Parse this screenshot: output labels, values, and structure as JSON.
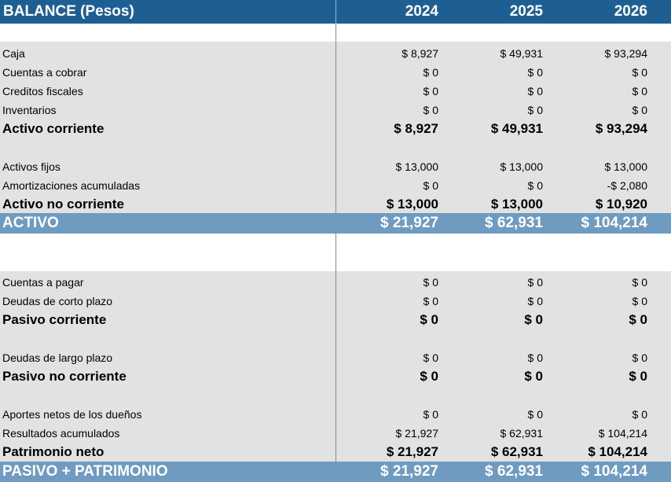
{
  "header": {
    "title": "BALANCE (Pesos)",
    "years": [
      "2024",
      "2025",
      "2026"
    ]
  },
  "rows": {
    "caja": {
      "label": "Caja",
      "values": [
        "$ 8,927",
        "$ 49,931",
        "$ 93,294"
      ]
    },
    "cuentas_cobrar": {
      "label": "Cuentas a cobrar",
      "values": [
        "$ 0",
        "$ 0",
        "$ 0"
      ]
    },
    "creditos": {
      "label": "Creditos fiscales",
      "values": [
        "$ 0",
        "$ 0",
        "$ 0"
      ]
    },
    "inventarios": {
      "label": "Inventarios",
      "values": [
        "$ 0",
        "$ 0",
        "$ 0"
      ]
    },
    "activo_corr": {
      "label": "Activo corriente",
      "values": [
        "$ 8,927",
        "$ 49,931",
        "$ 93,294"
      ]
    },
    "activos_fijos": {
      "label": "Activos fijos",
      "values": [
        "$ 13,000",
        "$ 13,000",
        "$ 13,000"
      ]
    },
    "amortizaciones": {
      "label": "Amortizaciones acumuladas",
      "values": [
        "$ 0",
        "$ 0",
        "-$ 2,080"
      ]
    },
    "activo_no_corr": {
      "label": "Activo no corriente",
      "values": [
        "$ 13,000",
        "$ 13,000",
        "$ 10,920"
      ]
    },
    "activo": {
      "label": "ACTIVO",
      "values": [
        "$ 21,927",
        "$ 62,931",
        "$ 104,214"
      ]
    },
    "cuentas_pagar": {
      "label": "Cuentas a pagar",
      "values": [
        "$ 0",
        "$ 0",
        "$ 0"
      ]
    },
    "deudas_corto": {
      "label": "Deudas de corto plazo",
      "values": [
        "$ 0",
        "$ 0",
        "$ 0"
      ]
    },
    "pasivo_corr": {
      "label": "Pasivo corriente",
      "values": [
        "$ 0",
        "$ 0",
        "$ 0"
      ]
    },
    "deudas_largo": {
      "label": "Deudas de largo plazo",
      "values": [
        "$ 0",
        "$ 0",
        "$ 0"
      ]
    },
    "pasivo_no_corr": {
      "label": "Pasivo no corriente",
      "values": [
        "$ 0",
        "$ 0",
        "$ 0"
      ]
    },
    "aportes": {
      "label": "Aportes netos de los dueños",
      "values": [
        "$ 0",
        "$ 0",
        "$ 0"
      ]
    },
    "resultados": {
      "label": "Resultados acumulados",
      "values": [
        "$ 21,927",
        "$ 62,931",
        "$ 104,214"
      ]
    },
    "patrimonio": {
      "label": "Patrimonio neto",
      "values": [
        "$ 21,927",
        "$ 62,931",
        "$ 104,214"
      ]
    },
    "pasivo_patr": {
      "label": "PASIVO + PATRIMONIO",
      "values": [
        "$ 21,927",
        "$ 62,931",
        "$ 104,214"
      ]
    }
  },
  "colors": {
    "header_bg": "#1e5f93",
    "total_bg": "#6f9bc1",
    "row_bg": "#e2e2e2"
  }
}
